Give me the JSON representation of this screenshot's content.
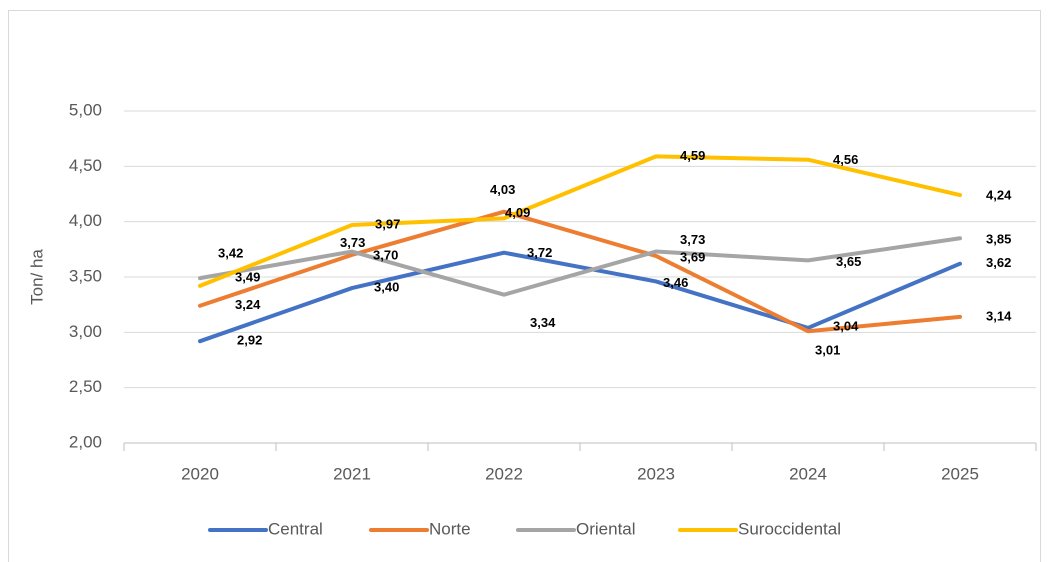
{
  "chart_data": {
    "type": "line",
    "y_axis_label": "Ton/ ha",
    "categories": [
      "2020",
      "2021",
      "2022",
      "2023",
      "2024",
      "2025"
    ],
    "series": [
      {
        "name": "Central",
        "color": "#4472c4",
        "values": [
          2.92,
          3.4,
          3.72,
          3.46,
          3.04,
          3.62
        ],
        "value_labels": [
          "2,92",
          "3,40",
          "3,72",
          "3,46",
          "3,04",
          "3,62"
        ]
      },
      {
        "name": "Norte",
        "color": "#ed7d31",
        "values": [
          3.24,
          3.7,
          4.09,
          3.69,
          3.01,
          3.14
        ],
        "value_labels": [
          "3,24",
          "3,70",
          "4,09",
          "3,69",
          "3,01",
          "3,14"
        ]
      },
      {
        "name": "Oriental",
        "color": "#a5a5a5",
        "values": [
          3.49,
          3.73,
          3.34,
          3.73,
          3.65,
          3.85
        ],
        "value_labels": [
          "3,49",
          "3,73",
          "3,34",
          "3,73",
          "3,65",
          "3,85"
        ]
      },
      {
        "name": "Suroccidental",
        "color": "#ffc000",
        "values": [
          3.42,
          3.97,
          4.03,
          4.59,
          4.56,
          4.24
        ],
        "value_labels": [
          "3,42",
          "3,97",
          "4,03",
          "4,59",
          "4,56",
          "4,24"
        ]
      }
    ],
    "ylim": [
      2,
      5
    ],
    "yticks": [
      {
        "value": 2,
        "label": "2,00"
      },
      {
        "value": 2.5,
        "label": "2,50"
      },
      {
        "value": 3,
        "label": "3,00"
      },
      {
        "value": 3.5,
        "label": "3,50"
      },
      {
        "value": 4,
        "label": "4,00"
      },
      {
        "value": 4.5,
        "label": "4,50"
      },
      {
        "value": 5,
        "label": "5,00"
      }
    ],
    "grid": true,
    "legend": "bottom"
  }
}
